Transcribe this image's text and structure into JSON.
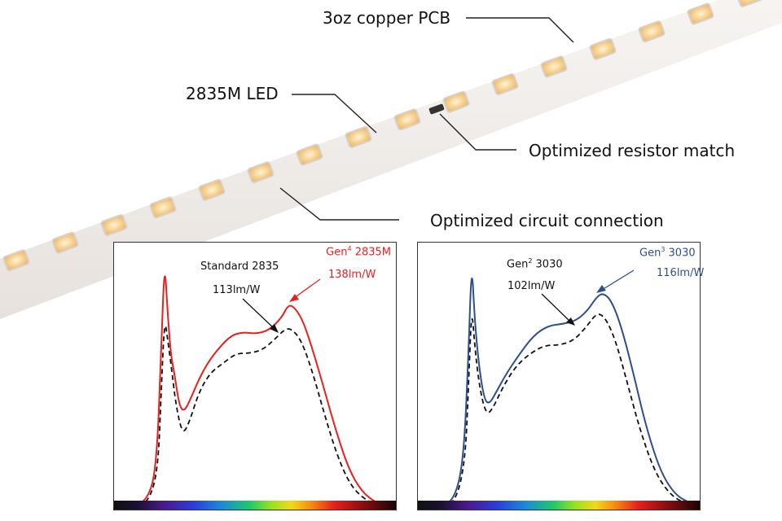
{
  "callouts": {
    "copper_pcb": "3oz copper PCB",
    "led": "2835M LED",
    "resistor": "Optimized resistor match",
    "circuit": "Optimized circuit connection"
  },
  "panel_left": {
    "gen_prefix": "Gen",
    "gen_sup": "4",
    "gen_model": " 2835M",
    "gen_efficacy": "138lm/W",
    "std_name": "Standard 2835",
    "std_efficacy": "113lm/W",
    "accent_color": "#e8201f"
  },
  "panel_right": {
    "gen_prefix": "Gen",
    "gen_sup": "3",
    "gen_model": " 3030",
    "gen_efficacy": "116lm/W",
    "std_prefix": "Gen",
    "std_sup": "2",
    "std_model": " 3030",
    "std_efficacy": "102lm/W",
    "accent_color": "#2e4f8f"
  },
  "colors": {
    "dashed_curve": "#111111",
    "strip": "#f2efed",
    "led_glow": "#f6cf8c"
  }
}
